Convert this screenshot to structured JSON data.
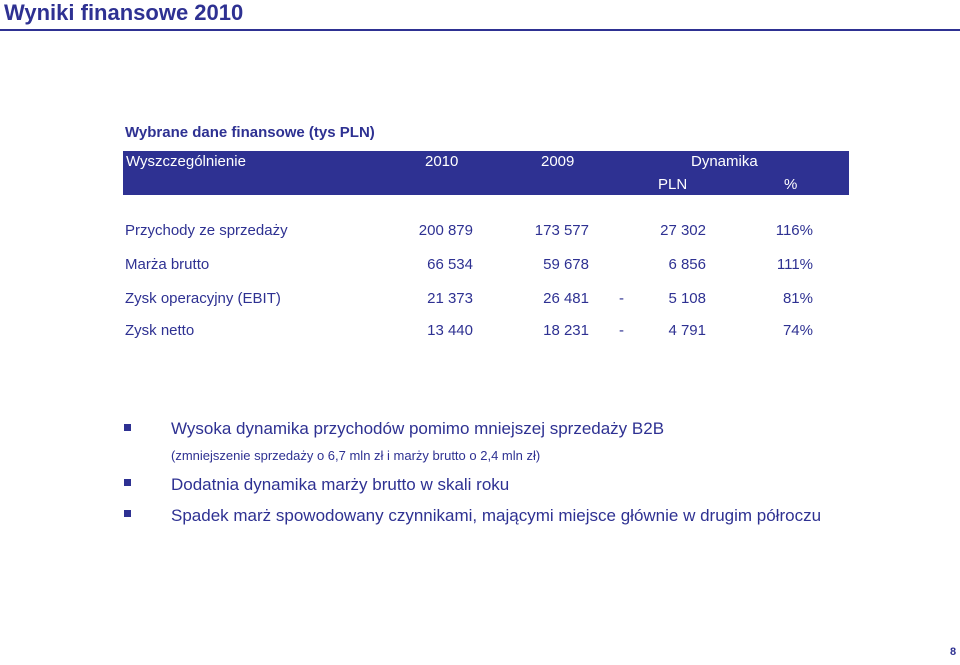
{
  "header": {
    "title": "Wyniki finansowe 2010"
  },
  "section": {
    "title": "Wybrane dane finansowe (tys PLN)"
  },
  "table": {
    "columns": {
      "label": "Wyszczególnienie",
      "y2010": "2010",
      "y2009": "2009",
      "dynamics": "Dynamika",
      "pln": "PLN",
      "pct": "%"
    },
    "rows": [
      {
        "label": "Przychody ze sprzedaży",
        "y2010": "200 879",
        "y2009": "173 577",
        "sign": "",
        "pln": "27 302",
        "pct": "116%"
      },
      {
        "label": "Marża brutto",
        "y2010": "66 534",
        "y2009": "59 678",
        "sign": "",
        "pln": "6 856",
        "pct": "111%"
      },
      {
        "label": "Zysk operacyjny (EBIT)",
        "y2010": "21 373",
        "y2009": "26 481",
        "sign": "-",
        "pln": "5 108",
        "pct": "81%"
      },
      {
        "label": "Zysk netto",
        "y2010": "13 440",
        "y2009": "18 231",
        "sign": "-",
        "pln": "4 791",
        "pct": "74%"
      }
    ]
  },
  "bullets": {
    "b1": "Wysoka dynamika przychodów pomimo mniejszej sprzedaży B2B",
    "b1_note": "(zmniejszenie sprzedaży o 6,7 mln zł i marży brutto o 2,4 mln zł)",
    "b2": "Dodatnia dynamika marży brutto w skali roku",
    "b3": "Spadek marż spowodowany czynnikami, mającymi miejsce głównie w drugim półroczu"
  },
  "footer": {
    "page_number": "8"
  },
  "colors": {
    "brand": "#2e3192",
    "background": "#ffffff"
  }
}
